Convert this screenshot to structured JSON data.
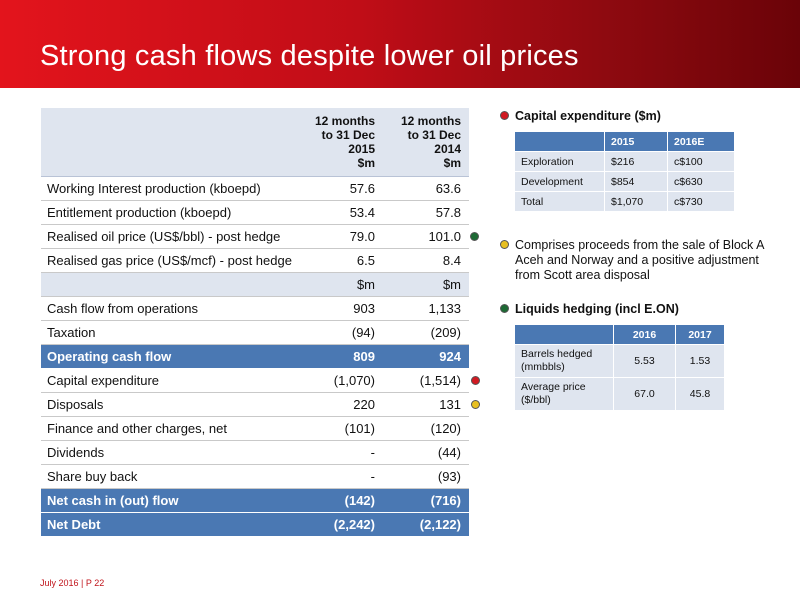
{
  "title": "Strong cash flows despite lower oil prices",
  "table": {
    "header": {
      "label": "",
      "col1": "12 months to 31 Dec 2015 $m",
      "col2": "12 months to 31 Dec 2014 $m"
    },
    "rows": [
      {
        "label": "Working Interest production (kboepd)",
        "v2015": "57.6",
        "v2014": "63.6"
      },
      {
        "label": "Entitlement production (kboepd)",
        "v2015": "53.4",
        "v2014": "57.8"
      },
      {
        "label": "Realised oil price (US$/bbl) - post hedge",
        "v2015": "79.0",
        "v2014": "101.0"
      },
      {
        "label": "Realised gas price (US$/mcf) - post hedge",
        "v2015": "6.5",
        "v2014": "8.4"
      },
      {
        "label": "",
        "v2015": "$m",
        "v2014": "$m"
      },
      {
        "label": "Cash flow from operations",
        "v2015": "903",
        "v2014": "1,133"
      },
      {
        "label": "Taxation",
        "v2015": "(94)",
        "v2014": "(209)"
      },
      {
        "label": "Operating cash flow",
        "v2015": "809",
        "v2014": "924"
      },
      {
        "label": "Capital expenditure",
        "v2015": "(1,070)",
        "v2014": "(1,514)"
      },
      {
        "label": "Disposals",
        "v2015": "220",
        "v2014": "131"
      },
      {
        "label": "Finance and other charges, net",
        "v2015": "(101)",
        "v2014": "(120)"
      },
      {
        "label": "Dividends",
        "v2015": "-",
        "v2014": "(44)"
      },
      {
        "label": "Share buy back",
        "v2015": "-",
        "v2014": "(93)"
      },
      {
        "label": "Net cash in (out) flow",
        "v2015": "(142)",
        "v2014": "(716)"
      },
      {
        "label": "Net  Debt",
        "v2015": "(2,242)",
        "v2014": "(2,122)"
      }
    ]
  },
  "capex": {
    "heading": "Capital expenditure ($m)",
    "cols": [
      "",
      "2015",
      "2016E"
    ],
    "rows": [
      [
        "Exploration",
        "$216",
        "c$100"
      ],
      [
        "Development",
        "$854",
        "c$630"
      ],
      [
        "Total",
        "$1,070",
        "c$730"
      ]
    ]
  },
  "disposals_note": "Comprises proceeds from the sale of Block A Aceh and Norway and a positive adjustment from Scott area disposal",
  "hedging": {
    "heading": "Liquids hedging (incl E.ON)",
    "cols": [
      "",
      "2016",
      "2017"
    ],
    "rows": [
      [
        "Barrels hedged (mmbbls)",
        "5.53",
        "1.53"
      ],
      [
        "Average price ($/bbl)",
        "67.0",
        "45.8"
      ]
    ]
  },
  "colors": {
    "red_dot": "#d11a22",
    "yellow_dot": "#e8c021",
    "green_dot": "#1d6a34",
    "highlight_row": "#4a78b3",
    "header_fill": "#dfe5ef"
  },
  "footer": "July 2016 | P 22"
}
